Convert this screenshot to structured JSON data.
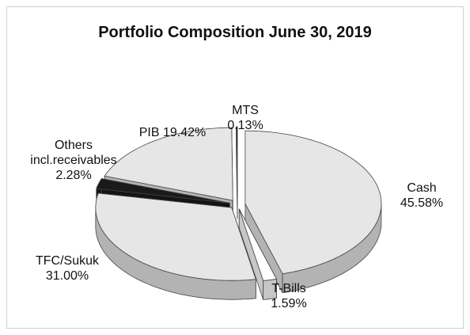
{
  "chart_data": {
    "type": "pie3d",
    "title": "Portfolio Composition June 30, 2019",
    "categories": [
      "Cash",
      "T-Bills",
      "TFC/Sukuk",
      "Others incl.receivables",
      "PIB",
      "MTS"
    ],
    "values": [
      45.58,
      1.59,
      31.0,
      2.28,
      19.42,
      0.13
    ],
    "value_labels": [
      "45.58%",
      "1.59%",
      "31.00%",
      "2.28%",
      "19.42%",
      "0.13%"
    ],
    "colors": [
      "#e6e6e6",
      "#ffffff",
      "#e6e6e6",
      "#1a1a1a",
      "#e6e6e6",
      "#1a1a1a"
    ]
  }
}
